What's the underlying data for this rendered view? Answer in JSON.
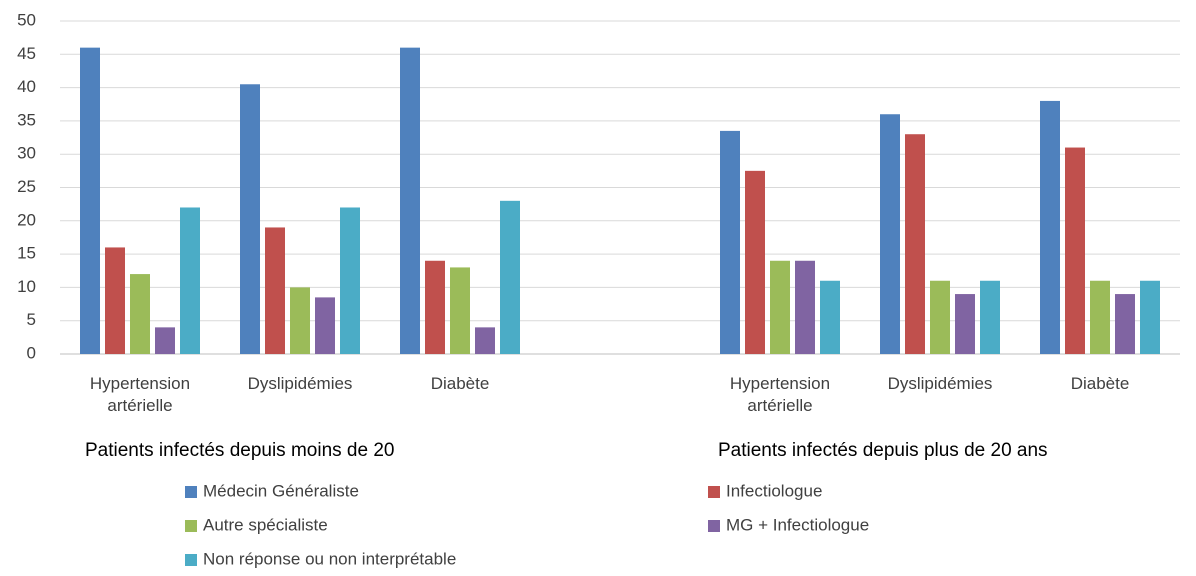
{
  "chart_data": {
    "type": "bar",
    "categories": [
      "Hypertension artérielle",
      "Dyslipidémies",
      "Diabète",
      null,
      "Hypertension artérielle",
      "Dyslipidémies",
      "Diabète"
    ],
    "group_labels": [
      "Patients infectés depuis moins de 20",
      "Patients infectés depuis plus de 20 ans"
    ],
    "series": [
      {
        "name": "Médecin Généraliste",
        "color": "#4f81bd",
        "values": [
          46,
          40.5,
          46,
          null,
          33.5,
          36,
          38
        ]
      },
      {
        "name": "Infectiologue",
        "color": "#c0504d",
        "values": [
          16,
          19,
          14,
          null,
          27.5,
          33,
          31
        ]
      },
      {
        "name": "Autre spécialiste",
        "color": "#9bbb59",
        "values": [
          12,
          10,
          13,
          null,
          14,
          11,
          11
        ]
      },
      {
        "name": "MG + Infectiologue",
        "color": "#8064a2",
        "values": [
          4,
          8.5,
          4,
          null,
          14,
          9,
          9
        ]
      },
      {
        "name": "Non réponse ou non interprétable",
        "color": "#4bacc6",
        "values": [
          22,
          22,
          23,
          null,
          11,
          11,
          11
        ]
      }
    ],
    "ylim": [
      0,
      50
    ],
    "yticks": [
      0,
      5,
      10,
      15,
      20,
      25,
      30,
      35,
      40,
      45,
      50
    ],
    "grid": true
  }
}
